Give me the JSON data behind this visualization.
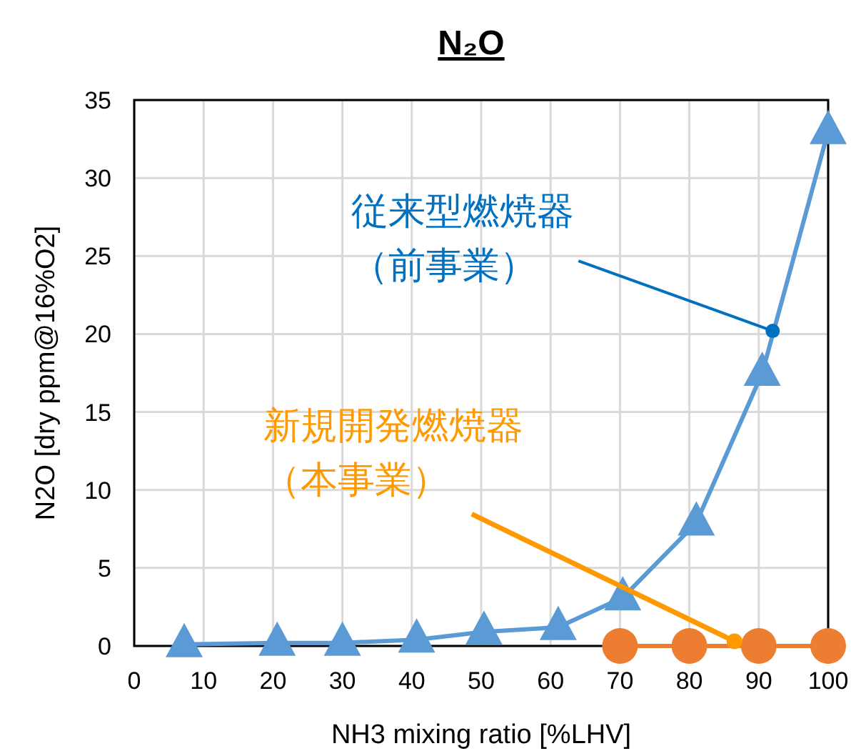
{
  "chart_data": {
    "type": "line",
    "title": "N₂O",
    "xlabel": "NH3 mixing ratio [%LHV]",
    "ylabel": "N2O [dry ppm@16%O2]",
    "xlim": [
      0,
      100
    ],
    "xticks": [
      0,
      10,
      20,
      30,
      40,
      50,
      60,
      70,
      80,
      90,
      100
    ],
    "ylim": [
      0,
      35
    ],
    "yticks": [
      0,
      5,
      10,
      15,
      20,
      25,
      30,
      35
    ],
    "grid": true,
    "series": [
      {
        "color": "#5b9bd5",
        "marker": "triangle",
        "x": [
          7.2,
          20.6,
          30,
          40.7,
          50.4,
          61.1,
          70.4,
          81,
          90.5,
          100
        ],
        "values": [
          0.1,
          0.2,
          0.2,
          0.4,
          0.9,
          1.2,
          3.1,
          7.9,
          17.5,
          33
        ]
      },
      {
        "color": "#ed7d31",
        "marker": "circle",
        "x": [
          70,
          80,
          90,
          100
        ],
        "values": [
          0,
          0,
          0,
          0
        ]
      }
    ],
    "annotations": [
      {
        "text": "従来型燃焼器（前事業）",
        "x": 92,
        "y": 20.2
      },
      {
        "text": "新規開発燃焼器（本事業）",
        "x": 86.5,
        "y": 0.3
      }
    ]
  }
}
